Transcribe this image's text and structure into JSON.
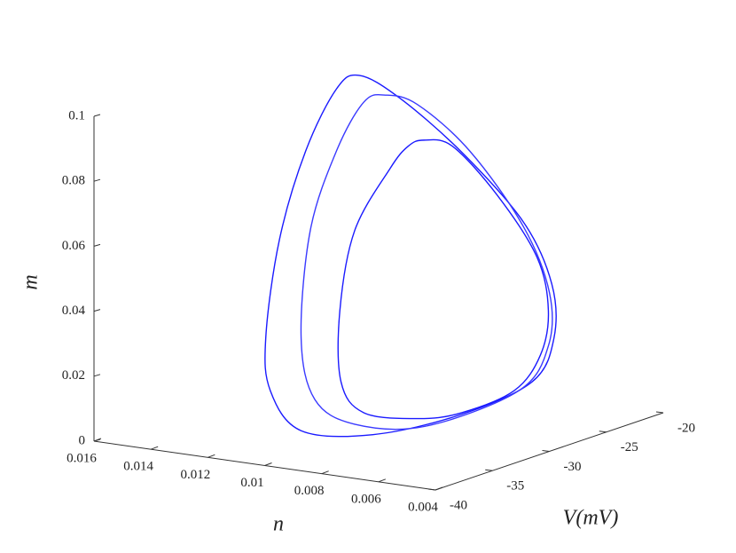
{
  "chart_data": {
    "type": "line3d",
    "xlabel": "V(mV)",
    "ylabel": "n",
    "zlabel": "m",
    "xlim": [
      -40,
      -20
    ],
    "xticks": [
      -40,
      -35,
      -30,
      -25,
      -20
    ],
    "ylim": [
      0.004,
      0.016
    ],
    "yticks": [
      0.004,
      0.006,
      0.008,
      0.01,
      0.012,
      0.014,
      0.016
    ],
    "zlim": [
      0,
      0.1
    ],
    "zticks": [
      0,
      0.02,
      0.04,
      0.06,
      0.08,
      0.1
    ],
    "series": [
      {
        "color": "#1a1aff",
        "x": [
          -34.7,
          -31.2,
          -25.8,
          -20.3,
          -17.8,
          -17.6,
          -19.5,
          -25.8,
          -33.5,
          -39.8,
          -42.5,
          -42.9,
          -41.7,
          -39.4,
          -36.7
        ],
        "y": [
          0.0088,
          0.0088,
          0.0088,
          0.0088,
          0.0088,
          0.0088,
          0.0088,
          0.0088,
          0.0088,
          0.0088,
          0.0088,
          0.0088,
          0.0088,
          0.0088,
          0.0088
        ],
        "z": [
          0.1153,
          0.1043,
          0.0814,
          0.0531,
          0.031,
          0.0143,
          0.003,
          0.0003,
          0.0033,
          0.012,
          0.0275,
          0.0444,
          0.0731,
          0.0976,
          0.1135
        ]
      },
      {
        "color": "#3a3aff",
        "x": [
          -32.4,
          -29.6,
          -25.0,
          -20.3,
          -18.0,
          -18.1,
          -20.7,
          -28.9,
          -35.1,
          -38.6,
          -39.8,
          -39.0,
          -36.7,
          -34.3
        ],
        "y": [
          0.0088,
          0.0088,
          0.0088,
          0.0088,
          0.0088,
          0.0088,
          0.0088,
          0.0088,
          0.0088,
          0.0088,
          0.0088,
          0.0088,
          0.0088,
          0.0088
        ],
        "z": [
          0.1065,
          0.1003,
          0.0805,
          0.0517,
          0.0285,
          0.0123,
          0.0016,
          0.0004,
          0.0084,
          0.0202,
          0.0407,
          0.0726,
          0.0944,
          0.1066
        ]
      },
      {
        "color": "#1a1aff",
        "x": [
          -29.0,
          -26.5,
          -22.6,
          -19.1,
          -18.1,
          -18.8,
          -21.1,
          -25.8,
          -29.6,
          -34.3,
          -36.3,
          -36.4,
          -35.1,
          -32.0,
          -30.4
        ],
        "y": [
          0.0088,
          0.0088,
          0.0088,
          0.0088,
          0.0088,
          0.0088,
          0.0088,
          0.0088,
          0.0088,
          0.0088,
          0.0088,
          0.0088,
          0.0088,
          0.0088,
          0.0088
        ],
        "z": [
          0.0886,
          0.0837,
          0.0641,
          0.0408,
          0.0232,
          0.0103,
          0.0021,
          0.0008,
          0.0036,
          0.011,
          0.0229,
          0.0449,
          0.068,
          0.0834,
          0.0884
        ]
      }
    ]
  }
}
